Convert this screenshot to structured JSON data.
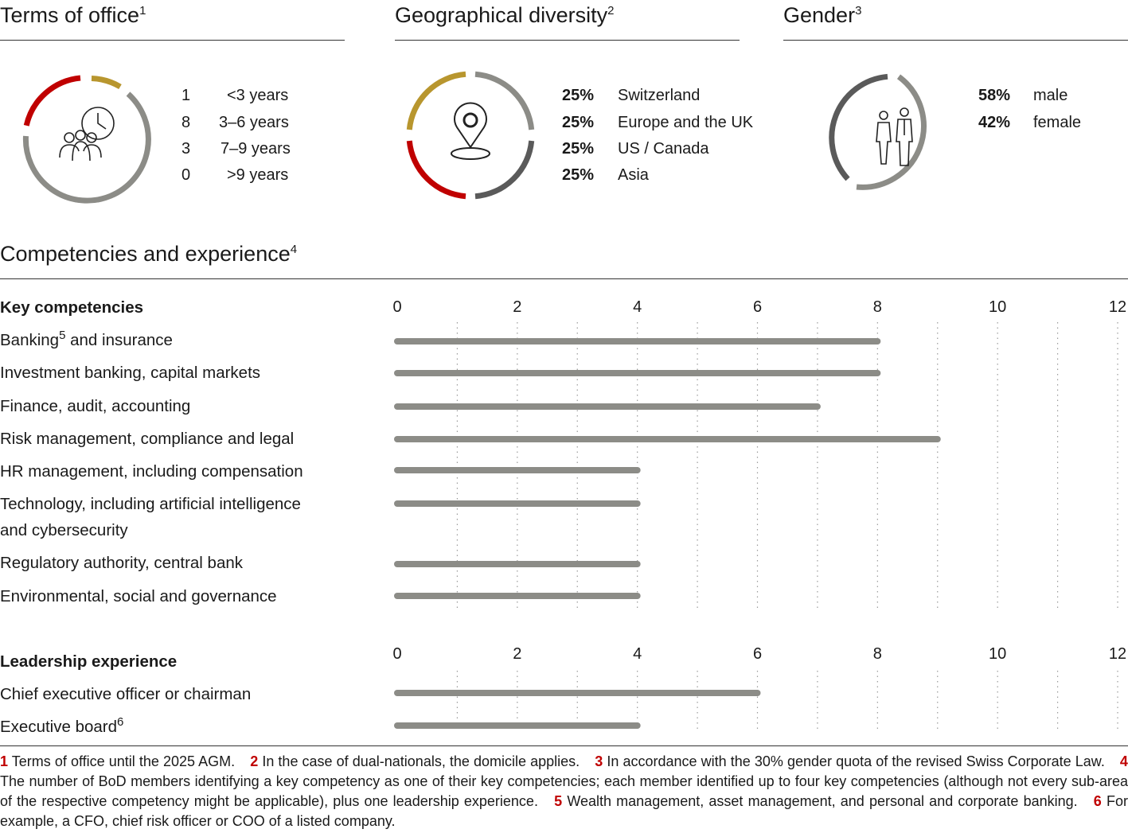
{
  "terms": {
    "title": "Terms of office",
    "sup": "1",
    "rows": [
      {
        "count": "1",
        "label": "<3 years"
      },
      {
        "count": "8",
        "label": "3–6 years"
      },
      {
        "count": "3",
        "label": "7–9 years"
      },
      {
        "count": "0",
        "label": ">9 years"
      }
    ],
    "ring_colors": [
      "#c00000",
      "#b8962e",
      "#8c8c87"
    ]
  },
  "geo": {
    "title": "Geographical diversity",
    "sup": "2",
    "rows": [
      {
        "pct": "25%",
        "label": "Switzerland"
      },
      {
        "pct": "25%",
        "label": "Europe and the UK"
      },
      {
        "pct": "25%",
        "label": "US / Canada"
      },
      {
        "pct": "25%",
        "label": "Asia"
      }
    ],
    "ring_colors": [
      "#8c8c87",
      "#5a5a5a",
      "#c00000",
      "#b8962e"
    ]
  },
  "gender": {
    "title": "Gender",
    "sup": "3",
    "rows": [
      {
        "pct": "58%",
        "label": "male"
      },
      {
        "pct": "42%",
        "label": "female"
      }
    ],
    "ring_colors": [
      "#8c8c87",
      "#5a5a5a"
    ]
  },
  "competencies": {
    "title": "Competencies and experience",
    "sup": "4"
  },
  "chart_data": [
    {
      "type": "bar",
      "orientation": "horizontal",
      "title": "Key competencies",
      "categories": [
        "Banking and insurance",
        "Investment banking, capital markets",
        "Finance, audit, accounting",
        "Risk management, compliance and legal",
        "HR management, including compensation",
        "Technology, including artificial intelligence and cybersecurity",
        "Regulatory authority, central bank",
        "Environmental, social and governance"
      ],
      "values": [
        8,
        8,
        7,
        9,
        4,
        4,
        4,
        4
      ],
      "xlim": [
        0,
        12
      ],
      "xticks": [
        "0",
        "2",
        "4",
        "6",
        "8",
        "10",
        "12"
      ],
      "grid": true,
      "bar_color": "#8c8c87"
    },
    {
      "type": "bar",
      "orientation": "horizontal",
      "title": "Leadership experience",
      "categories": [
        "Chief executive officer or chairman",
        "Executive board"
      ],
      "values": [
        6,
        4
      ],
      "xlim": [
        0,
        12
      ],
      "xticks": [
        "0",
        "2",
        "4",
        "6",
        "8",
        "10",
        "12"
      ],
      "grid": true,
      "bar_color": "#8c8c87"
    }
  ],
  "labels": {
    "key_title": "Key competencies",
    "banking_a": "Banking",
    "banking_sup": "5",
    "banking_b": " and insurance",
    "ib": "Investment banking, capital markets",
    "finance": "Finance, audit, accounting",
    "risk": "Risk management, compliance and legal",
    "hr": "HR management, including compensation",
    "tech_1": "Technology, including artificial intelligence",
    "tech_2": "and cybersecurity",
    "reg": "Regulatory authority, central bank",
    "esg": "Environmental, social and governance",
    "lead_title": "Leadership experience",
    "ceo": "Chief executive officer or chairman",
    "exec_a": "Executive board",
    "exec_sup": "6"
  },
  "footnotes": [
    {
      "num": "1",
      "text": "Terms of office until the 2025 AGM."
    },
    {
      "num": "2",
      "text": "In the case of dual-nationals, the domicile applies."
    },
    {
      "num": "3",
      "text": "In accordance with the 30% gender quota of the revised Swiss Corporate Law."
    },
    {
      "num": "4",
      "text": "The number of BoD members identifying a key competency as one of their key competencies; each member identified up to four key competencies (although not every sub-area of the respective competency might be applicable), plus one leadership experience."
    },
    {
      "num": "5",
      "text": "Wealth management, asset management, and personal and corporate banking."
    },
    {
      "num": "6",
      "text": "For example, a CFO, chief risk officer or COO of a listed company."
    }
  ],
  "icons": {
    "terms": "people-clock-icon",
    "geo": "location-pin-icon",
    "gender": "male-female-icon"
  }
}
